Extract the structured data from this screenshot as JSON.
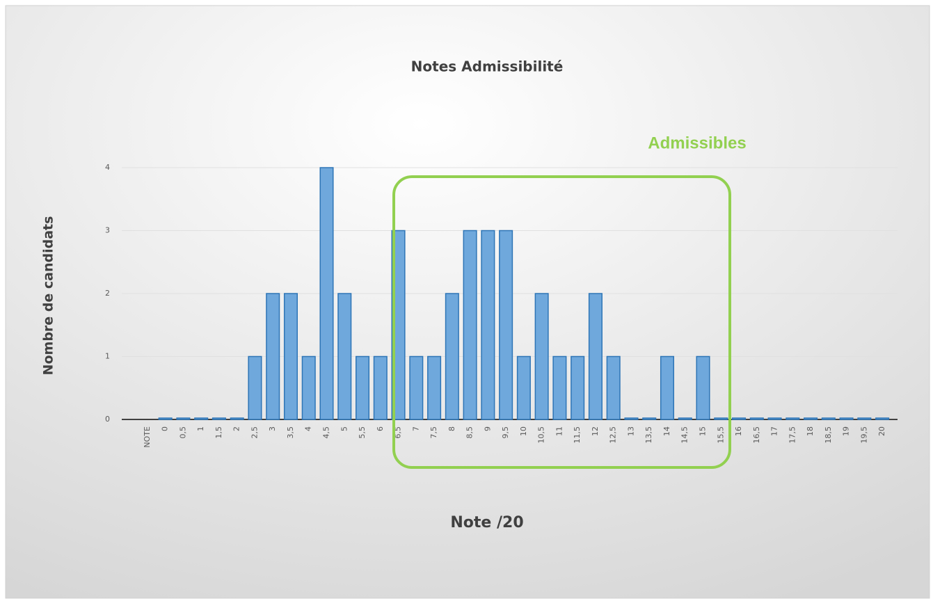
{
  "chart_data": {
    "type": "bar",
    "title": "Notes Admissibilité",
    "x_label": "Note /20",
    "y_label": "Nombre de candidats",
    "annotation": "Admissibles",
    "categories": [
      "NOTE",
      "0",
      "0,5",
      "1",
      "1,5",
      "2",
      "2,5",
      "3",
      "3,5",
      "4",
      "4,5",
      "5",
      "5,5",
      "6",
      "6,5",
      "7",
      "7,5",
      "8",
      "8,5",
      "9",
      "9,5",
      "10",
      "10,5",
      "11",
      "11,5",
      "12",
      "12,5",
      "13",
      "13,5",
      "14",
      "14,5",
      "15",
      "15,5",
      "16",
      "16,5",
      "17",
      "17,5",
      "18",
      "18,5",
      "19",
      "19,5",
      "20"
    ],
    "values": [
      null,
      0,
      0,
      0,
      0,
      0,
      1,
      2,
      2,
      1,
      4,
      2,
      1,
      1,
      3,
      1,
      1,
      2,
      3,
      3,
      3,
      1,
      2,
      1,
      1,
      2,
      1,
      0,
      0,
      1,
      0,
      1,
      0,
      0,
      0,
      0,
      0,
      0,
      0,
      0,
      0,
      0
    ],
    "color": "#6fa8dc",
    "ylim": [
      0,
      4
    ],
    "yticks": [
      0,
      1,
      2,
      3,
      4
    ],
    "grid": true
  }
}
